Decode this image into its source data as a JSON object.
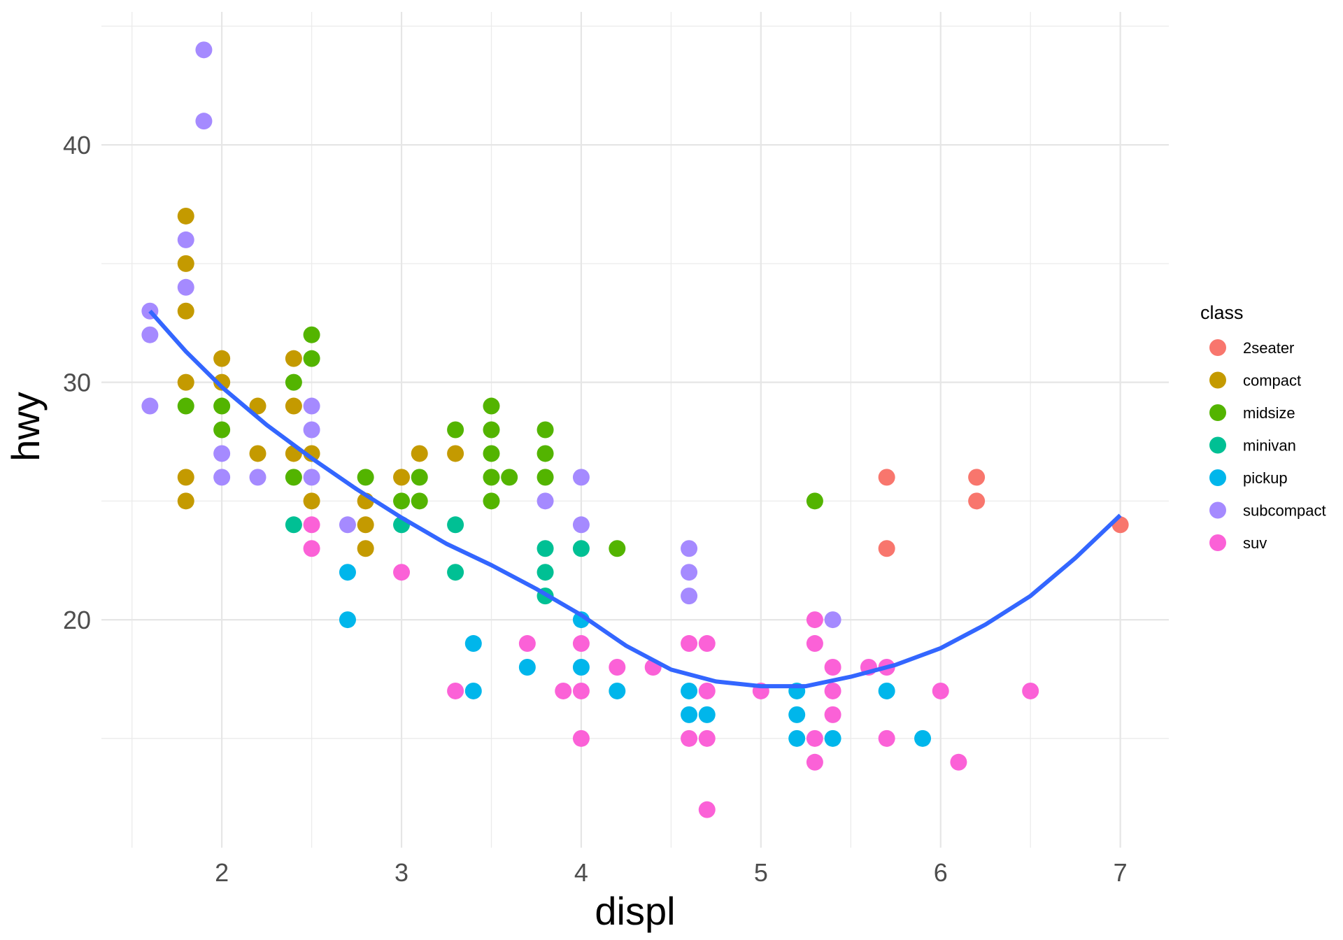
{
  "chart_data": {
    "type": "scatter",
    "title": "",
    "xlabel": "displ",
    "ylabel": "hwy",
    "xlim": [
      1.33,
      7.27
    ],
    "ylim": [
      10.4,
      45.6
    ],
    "x_ticks": [
      2,
      3,
      4,
      5,
      6,
      7
    ],
    "x_tick_labels": [
      "2",
      "3",
      "4",
      "5",
      "6",
      "7"
    ],
    "y_ticks": [
      20,
      30,
      40
    ],
    "y_tick_labels": [
      "20",
      "30",
      "40"
    ],
    "grid": true,
    "legend": {
      "title": "class",
      "placement": "right"
    },
    "series": [
      {
        "name": "2seater",
        "color": "#F8766D",
        "points": [
          [
            5.7,
            26
          ],
          [
            5.7,
            23
          ],
          [
            6.2,
            26
          ],
          [
            6.2,
            25
          ],
          [
            7,
            24
          ]
        ]
      },
      {
        "name": "compact",
        "color": "#C49A00",
        "points": [
          [
            1.8,
            37
          ],
          [
            1.8,
            35
          ],
          [
            1.8,
            33
          ],
          [
            1.8,
            30
          ],
          [
            1.8,
            26
          ],
          [
            1.8,
            25
          ],
          [
            2,
            31
          ],
          [
            2,
            30
          ],
          [
            2.2,
            29
          ],
          [
            2.2,
            27
          ],
          [
            2.4,
            31
          ],
          [
            2.4,
            29
          ],
          [
            2.4,
            27
          ],
          [
            2.5,
            27
          ],
          [
            2.5,
            25
          ],
          [
            2.8,
            25
          ],
          [
            2.8,
            24
          ],
          [
            2.8,
            23
          ],
          [
            3,
            26
          ],
          [
            3.1,
            27
          ],
          [
            3.3,
            27
          ]
        ]
      },
      {
        "name": "midsize",
        "color": "#53B400",
        "points": [
          [
            1.8,
            29
          ],
          [
            2,
            29
          ],
          [
            2,
            28
          ],
          [
            2.4,
            30
          ],
          [
            2.4,
            26
          ],
          [
            2.5,
            32
          ],
          [
            2.5,
            31
          ],
          [
            2.8,
            26
          ],
          [
            3,
            25
          ],
          [
            3.1,
            26
          ],
          [
            3.1,
            25
          ],
          [
            3.3,
            28
          ],
          [
            3.5,
            29
          ],
          [
            3.5,
            28
          ],
          [
            3.5,
            27
          ],
          [
            3.5,
            26
          ],
          [
            3.5,
            25
          ],
          [
            3.6,
            26
          ],
          [
            3.8,
            28
          ],
          [
            3.8,
            27
          ],
          [
            3.8,
            26
          ],
          [
            4.2,
            23
          ],
          [
            5.3,
            25
          ]
        ]
      },
      {
        "name": "minivan",
        "color": "#00C094",
        "points": [
          [
            2.4,
            24
          ],
          [
            3,
            24
          ],
          [
            3.3,
            24
          ],
          [
            3.3,
            22
          ],
          [
            3.8,
            23
          ],
          [
            3.8,
            22
          ],
          [
            3.8,
            21
          ],
          [
            4,
            23
          ]
        ]
      },
      {
        "name": "pickup",
        "color": "#00B6EB",
        "points": [
          [
            2.7,
            22
          ],
          [
            2.7,
            20
          ],
          [
            3.4,
            19
          ],
          [
            3.4,
            17
          ],
          [
            3.7,
            18
          ],
          [
            4,
            20
          ],
          [
            4,
            18
          ],
          [
            4.2,
            17
          ],
          [
            4.6,
            17
          ],
          [
            4.6,
            16
          ],
          [
            4.7,
            16
          ],
          [
            5.2,
            17
          ],
          [
            5.2,
            16
          ],
          [
            5.2,
            15
          ],
          [
            5.4,
            15
          ],
          [
            5.7,
            17
          ],
          [
            5.9,
            15
          ]
        ]
      },
      {
        "name": "subcompact",
        "color": "#A58AFF",
        "points": [
          [
            1.6,
            33
          ],
          [
            1.6,
            32
          ],
          [
            1.6,
            29
          ],
          [
            1.8,
            36
          ],
          [
            1.8,
            34
          ],
          [
            1.9,
            44
          ],
          [
            1.9,
            41
          ],
          [
            2,
            27
          ],
          [
            2,
            26
          ],
          [
            2.2,
            26
          ],
          [
            2.5,
            29
          ],
          [
            2.5,
            28
          ],
          [
            2.5,
            26
          ],
          [
            2.7,
            24
          ],
          [
            3.8,
            25
          ],
          [
            4,
            26
          ],
          [
            4,
            24
          ],
          [
            4.6,
            23
          ],
          [
            4.6,
            22
          ],
          [
            4.6,
            21
          ],
          [
            5.4,
            20
          ]
        ]
      },
      {
        "name": "suv",
        "color": "#FB61D7",
        "points": [
          [
            2.5,
            24
          ],
          [
            2.5,
            23
          ],
          [
            3,
            22
          ],
          [
            3.3,
            17
          ],
          [
            3.7,
            19
          ],
          [
            3.9,
            17
          ],
          [
            4,
            19
          ],
          [
            4,
            17
          ],
          [
            4,
            15
          ],
          [
            4.2,
            18
          ],
          [
            4.4,
            18
          ],
          [
            4.6,
            19
          ],
          [
            4.6,
            15
          ],
          [
            4.7,
            19
          ],
          [
            4.7,
            17
          ],
          [
            4.7,
            15
          ],
          [
            4.7,
            12
          ],
          [
            5,
            17
          ],
          [
            5.3,
            20
          ],
          [
            5.3,
            19
          ],
          [
            5.3,
            15
          ],
          [
            5.3,
            14
          ],
          [
            5.4,
            18
          ],
          [
            5.4,
            17
          ],
          [
            5.4,
            16
          ],
          [
            5.6,
            18
          ],
          [
            5.7,
            18
          ],
          [
            5.7,
            15
          ],
          [
            6,
            17
          ],
          [
            6.1,
            14
          ],
          [
            6.5,
            17
          ]
        ]
      }
    ],
    "smooth": {
      "color": "#3366FF",
      "points": [
        [
          1.6,
          33.0
        ],
        [
          1.8,
          31.3
        ],
        [
          2.0,
          29.8
        ],
        [
          2.25,
          28.2
        ],
        [
          2.5,
          26.8
        ],
        [
          2.75,
          25.5
        ],
        [
          3.0,
          24.3
        ],
        [
          3.25,
          23.2
        ],
        [
          3.5,
          22.3
        ],
        [
          3.75,
          21.3
        ],
        [
          4.0,
          20.2
        ],
        [
          4.25,
          18.9
        ],
        [
          4.5,
          17.9
        ],
        [
          4.75,
          17.4
        ],
        [
          5.0,
          17.2
        ],
        [
          5.25,
          17.2
        ],
        [
          5.5,
          17.6
        ],
        [
          5.75,
          18.1
        ],
        [
          6.0,
          18.8
        ],
        [
          6.25,
          19.8
        ],
        [
          6.5,
          21.0
        ],
        [
          6.75,
          22.6
        ],
        [
          7.0,
          24.4
        ]
      ]
    }
  }
}
